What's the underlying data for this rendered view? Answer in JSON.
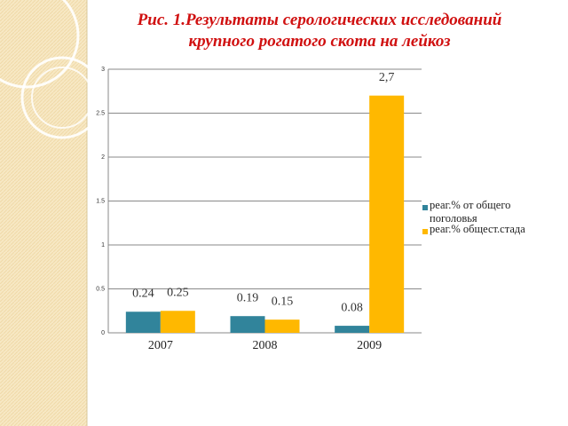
{
  "chart_data": {
    "type": "bar",
    "title": [
      "Рис. 1.Результаты серологических  исследований",
      "крупного рогатого скота на лейкоз"
    ],
    "categories": [
      "2007",
      "2008",
      "2009"
    ],
    "series": [
      {
        "name": "реаг.% от общего поголовья",
        "color": "#31849b",
        "values": [
          0.24,
          0.19,
          0.08
        ]
      },
      {
        "name": "реаг.% общест.стада",
        "color": "#ffb800",
        "values": [
          0.25,
          0.15,
          2.7
        ],
        "value_labels": [
          "0.25",
          "0.15",
          "2,7"
        ]
      }
    ],
    "ylim": [
      0,
      3
    ],
    "yticks": [
      0,
      0.5,
      1,
      1.5,
      2,
      2.5,
      3
    ],
    "grid": true,
    "legend": "right"
  }
}
